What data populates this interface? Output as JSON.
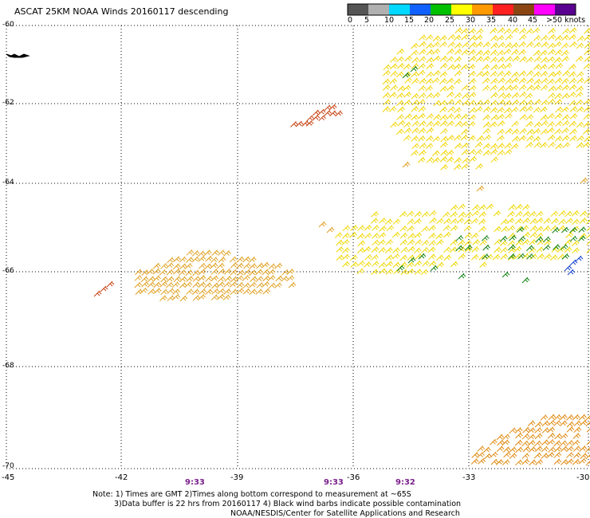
{
  "header": {
    "title": "ASCAT 25KM NOAA Winds 20160117 descending"
  },
  "colorbar": {
    "labels": [
      "0",
      "5",
      "10",
      "15",
      "20",
      "25",
      "30",
      "35",
      "40",
      "45",
      ">50 knots"
    ],
    "colors": [
      "#555555",
      "#b0b0b0",
      "#00d8ff",
      "#1060ff",
      "#00c000",
      "#ffff00",
      "#ff9900",
      "#ff2020",
      "#8b4513",
      "#ff00ff",
      "#5a0090"
    ]
  },
  "axes": {
    "lon_labels": [
      "-45",
      "-42",
      "-39",
      "-36",
      "-33",
      "-30"
    ],
    "lat_labels": [
      "-60",
      "-62",
      "-64",
      "-66",
      "-68",
      "-70"
    ]
  },
  "times": [
    "9:33",
    "9:33",
    "9:32"
  ],
  "notes": [
    "Note: 1) Times are GMT 2)Times along bottom correspond to measurement at ~65S",
    "3)Data buffer is 22 hrs from 20160117 4) Black wind barbs indicate possible contamination",
    "NOAA/NESDIS/Center for Satellite Applications and Research"
  ],
  "wind_regions": [
    {
      "name": "northeast-cluster",
      "color": "#f2d400"
    },
    {
      "name": "red-diagonal-band",
      "color": "#c84010"
    },
    {
      "name": "central-band",
      "color": "#efd800"
    },
    {
      "name": "west-band",
      "color": "#e0a020"
    },
    {
      "name": "southeast-corner",
      "color": "#e08a10"
    },
    {
      "name": "green-barbs",
      "color": "#108010"
    },
    {
      "name": "blue-barbs",
      "color": "#1040d0"
    }
  ]
}
